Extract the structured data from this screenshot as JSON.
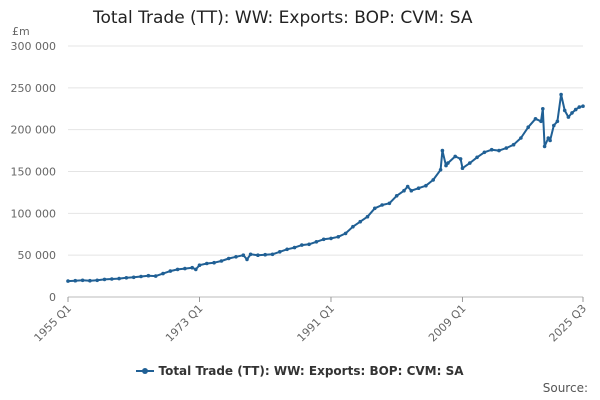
{
  "chart_data": {
    "type": "line",
    "title": "Total Trade (TT): WW: Exports: BOP: CVM: SA",
    "unit_label": "£m",
    "ylim": [
      0,
      300000
    ],
    "y_ticks": [
      0,
      50000,
      100000,
      150000,
      200000,
      250000,
      300000
    ],
    "y_tick_labels": [
      "0",
      "50 000",
      "100 000",
      "150 000",
      "200 000",
      "250 000",
      "300 000"
    ],
    "x_tick_labels": [
      "1955 Q1",
      "1973 Q1",
      "1991 Q1",
      "2009 Q1",
      "2025 Q3"
    ],
    "x_tick_years": [
      1955.0,
      1973.0,
      1991.0,
      2009.0,
      2025.5
    ],
    "xlim": [
      1955.0,
      2025.5
    ],
    "grid": true,
    "legend_position": "bottom",
    "color": "#206095",
    "series": [
      {
        "name": "Total Trade (TT): WW: Exports: BOP: CVM: SA",
        "points": [
          [
            "1955 Q1",
            19000
          ],
          [
            "1956 Q1",
            19500
          ],
          [
            "1957 Q1",
            20000
          ],
          [
            "1958 Q1",
            19500
          ],
          [
            "1959 Q1",
            20000
          ],
          [
            "1960 Q1",
            21000
          ],
          [
            "1961 Q1",
            21500
          ],
          [
            "1962 Q1",
            22000
          ],
          [
            "1963 Q1",
            23000
          ],
          [
            "1964 Q1",
            23500
          ],
          [
            "1965 Q1",
            24500
          ],
          [
            "1966 Q1",
            25500
          ],
          [
            "1967 Q1",
            25000
          ],
          [
            "1968 Q1",
            28000
          ],
          [
            "1969 Q1",
            31000
          ],
          [
            "1970 Q1",
            33000
          ],
          [
            "1971 Q1",
            34000
          ],
          [
            "1972 Q1",
            35000
          ],
          [
            "1972 Q3",
            33000
          ],
          [
            "1973 Q1",
            38000
          ],
          [
            "1974 Q1",
            40000
          ],
          [
            "1975 Q1",
            41000
          ],
          [
            "1976 Q1",
            43000
          ],
          [
            "1977 Q1",
            46000
          ],
          [
            "1978 Q1",
            48000
          ],
          [
            "1979 Q1",
            50000
          ],
          [
            "1979 Q3",
            45000
          ],
          [
            "1980 Q1",
            51000
          ],
          [
            "1981 Q1",
            50000
          ],
          [
            "1982 Q1",
            50500
          ],
          [
            "1983 Q1",
            51000
          ],
          [
            "1984 Q1",
            54000
          ],
          [
            "1985 Q1",
            57000
          ],
          [
            "1986 Q1",
            59000
          ],
          [
            "1987 Q1",
            62000
          ],
          [
            "1988 Q1",
            63000
          ],
          [
            "1989 Q1",
            66000
          ],
          [
            "1990 Q1",
            69000
          ],
          [
            "1991 Q1",
            70000
          ],
          [
            "1992 Q1",
            72000
          ],
          [
            "1993 Q1",
            76000
          ],
          [
            "1994 Q1",
            84000
          ],
          [
            "1995 Q1",
            90000
          ],
          [
            "1996 Q1",
            96000
          ],
          [
            "1997 Q1",
            106000
          ],
          [
            "1998 Q1",
            110000
          ],
          [
            "1999 Q1",
            112000
          ],
          [
            "2000 Q1",
            121000
          ],
          [
            "2001 Q1",
            127000
          ],
          [
            "2001 Q3",
            132000
          ],
          [
            "2002 Q1",
            127000
          ],
          [
            "2003 Q1",
            130000
          ],
          [
            "2004 Q1",
            133000
          ],
          [
            "2005 Q1",
            140000
          ],
          [
            "2006 Q1",
            152000
          ],
          [
            "2006 Q2",
            175000
          ],
          [
            "2006 Q4",
            157000
          ],
          [
            "2007 Q1",
            160000
          ],
          [
            "2008 Q1",
            168000
          ],
          [
            "2008 Q4",
            165000
          ],
          [
            "2009 Q1",
            154000
          ],
          [
            "2010 Q1",
            160000
          ],
          [
            "2011 Q1",
            167000
          ],
          [
            "2012 Q1",
            173000
          ],
          [
            "2013 Q1",
            176000
          ],
          [
            "2014 Q1",
            175000
          ],
          [
            "2015 Q1",
            178000
          ],
          [
            "2016 Q1",
            182000
          ],
          [
            "2017 Q1",
            190000
          ],
          [
            "2018 Q1",
            203000
          ],
          [
            "2019 Q1",
            213000
          ],
          [
            "2019 Q4",
            210000
          ],
          [
            "2020 Q1",
            225000
          ],
          [
            "2020 Q2",
            180000
          ],
          [
            "2020 Q4",
            190000
          ],
          [
            "2021 Q1",
            187000
          ],
          [
            "2021 Q3",
            205000
          ],
          [
            "2022 Q1",
            210000
          ],
          [
            "2022 Q3",
            242000
          ],
          [
            "2023 Q1",
            223000
          ],
          [
            "2023 Q3",
            215000
          ],
          [
            "2024 Q1",
            220000
          ],
          [
            "2024 Q3",
            224000
          ],
          [
            "2025 Q1",
            227000
          ],
          [
            "2025 Q3",
            228000
          ]
        ]
      }
    ]
  },
  "legend": {
    "label": "Total Trade (TT): WW: Exports: BOP: CVM: SA"
  },
  "source": {
    "label": "Source:"
  }
}
